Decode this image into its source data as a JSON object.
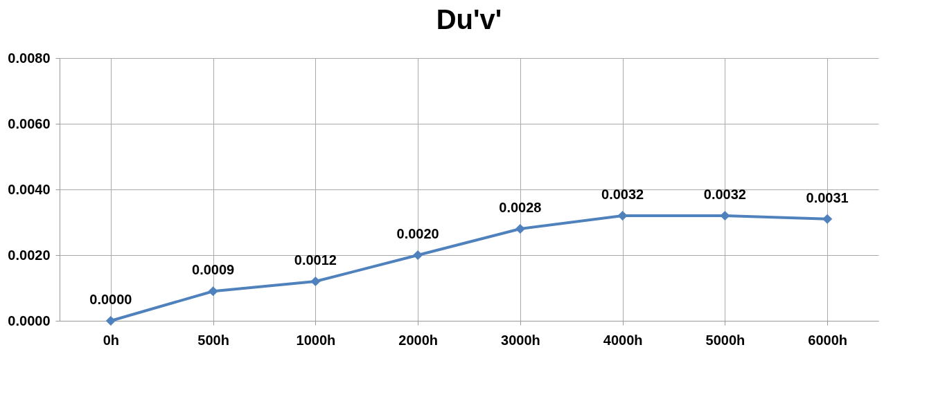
{
  "chart_data": {
    "type": "line",
    "title": "Du'v'",
    "categories": [
      "0h",
      "500h",
      "1000h",
      "2000h",
      "3000h",
      "4000h",
      "5000h",
      "6000h"
    ],
    "series": [
      {
        "color": "#4f81bd",
        "values": [
          0.0,
          0.0009,
          0.0012,
          0.002,
          0.0028,
          0.0032,
          0.0032,
          0.0031
        ],
        "value_labels": [
          "0.0000",
          "0.0009",
          "0.0012",
          "0.0020",
          "0.0028",
          "0.0032",
          "0.0032",
          "0.0031"
        ]
      }
    ],
    "ylim": [
      0,
      0.008
    ],
    "yticks": [
      {
        "value": 0,
        "label": "0.0000"
      },
      {
        "value": 0.002,
        "label": "0.0020"
      },
      {
        "value": 0.004,
        "label": "0.0040"
      },
      {
        "value": 0.006,
        "label": "0.0060"
      },
      {
        "value": 0.008,
        "label": "0.0080"
      }
    ],
    "grid": true,
    "marker": "diamond",
    "line_style": "solid",
    "legend": false
  }
}
